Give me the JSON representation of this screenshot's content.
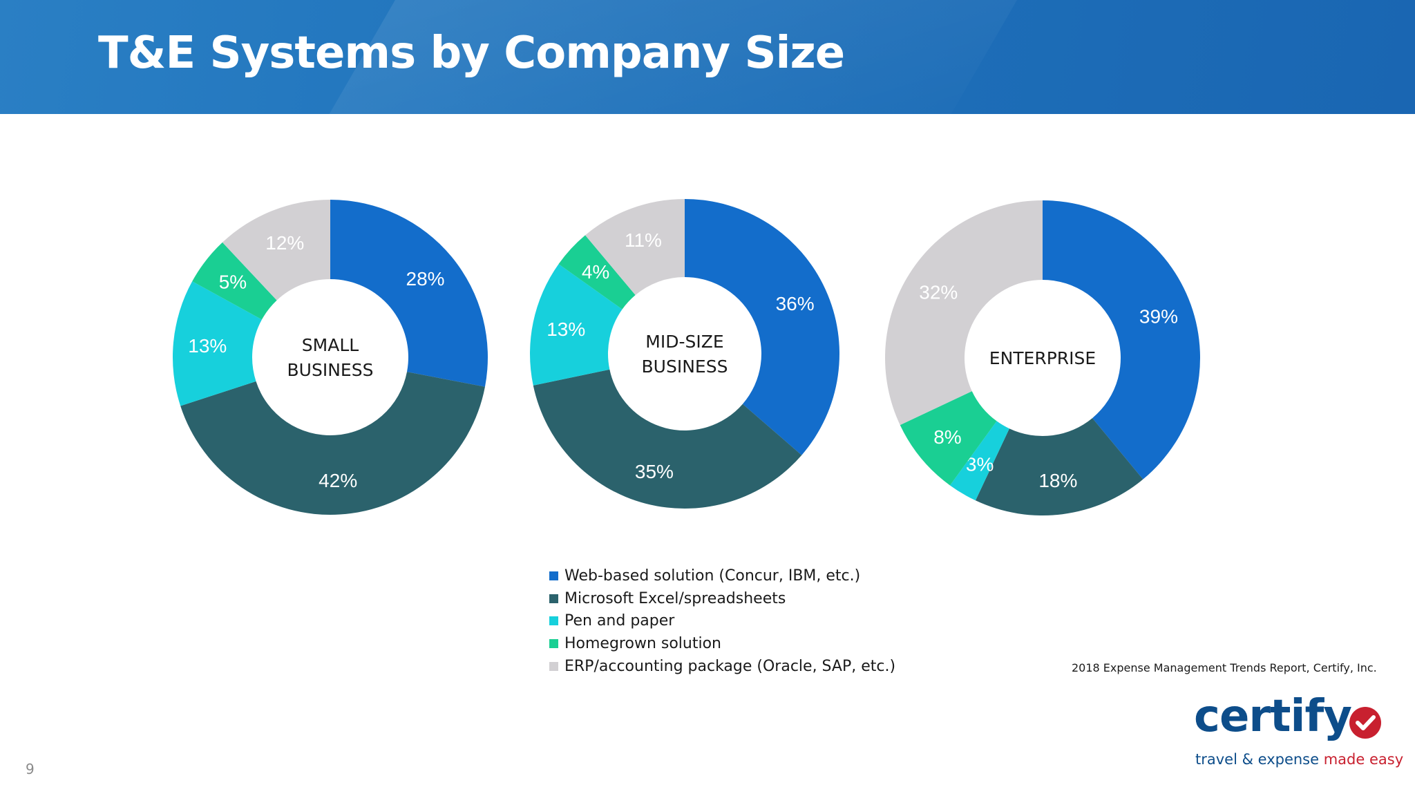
{
  "slide": {
    "title": "T&E Systems by Company Size",
    "page_number": "9",
    "source": "2018 Expense Management Trends Report, Certify, Inc."
  },
  "logo": {
    "wordmark": "certify",
    "tagline_part1": "travel & expense ",
    "tagline_part2": "made easy",
    "colors": {
      "wordmark": "#0d4d8a",
      "accent": "#c8202f"
    }
  },
  "chart_data": [
    {
      "type": "pie",
      "variant": "donut",
      "center_label": [
        "SMALL",
        "BUSINESS"
      ],
      "categories": [
        "Web-based solution (Concur, IBM, etc.)",
        "Microsoft Excel/spreadsheets",
        "Pen and paper",
        "Homegrown solution",
        "ERP/accounting package (Oracle, SAP, etc.)"
      ],
      "values": [
        28,
        42,
        13,
        5,
        12
      ],
      "data_labels": [
        "28%",
        "42%",
        "13%",
        "5%",
        "12%"
      ]
    },
    {
      "type": "pie",
      "variant": "donut",
      "center_label": [
        "MID-SIZE",
        "BUSINESS"
      ],
      "categories": [
        "Web-based solution (Concur, IBM, etc.)",
        "Microsoft Excel/spreadsheets",
        "Pen and paper",
        "Homegrown solution",
        "ERP/accounting package (Oracle, SAP, etc.)"
      ],
      "values": [
        36,
        35,
        13,
        4,
        11
      ],
      "data_labels": [
        "36%",
        "35%",
        "13%",
        "4%",
        "11%"
      ]
    },
    {
      "type": "pie",
      "variant": "donut",
      "center_label": [
        "ENTERPRISE"
      ],
      "categories": [
        "Web-based solution (Concur, IBM, etc.)",
        "Microsoft Excel/spreadsheets",
        "Pen and paper",
        "Homegrown solution",
        "ERP/accounting package (Oracle, SAP, etc.)"
      ],
      "values": [
        39,
        18,
        3,
        8,
        32
      ],
      "data_labels": [
        "39%",
        "18%",
        "3%",
        "8%",
        "32%"
      ]
    }
  ],
  "legend": {
    "placement": "bottom-center",
    "items": [
      {
        "label": "Web-based solution (Concur, IBM, etc.)",
        "color": "#136dcb"
      },
      {
        "label": "Microsoft Excel/spreadsheets",
        "color": "#2b626c"
      },
      {
        "label": "Pen and paper",
        "color": "#17d0dc"
      },
      {
        "label": "Homegrown solution",
        "color": "#1acf93"
      },
      {
        "label": "ERP/accounting package (Oracle, SAP, etc.)",
        "color": "#d2d0d3"
      }
    ]
  }
}
